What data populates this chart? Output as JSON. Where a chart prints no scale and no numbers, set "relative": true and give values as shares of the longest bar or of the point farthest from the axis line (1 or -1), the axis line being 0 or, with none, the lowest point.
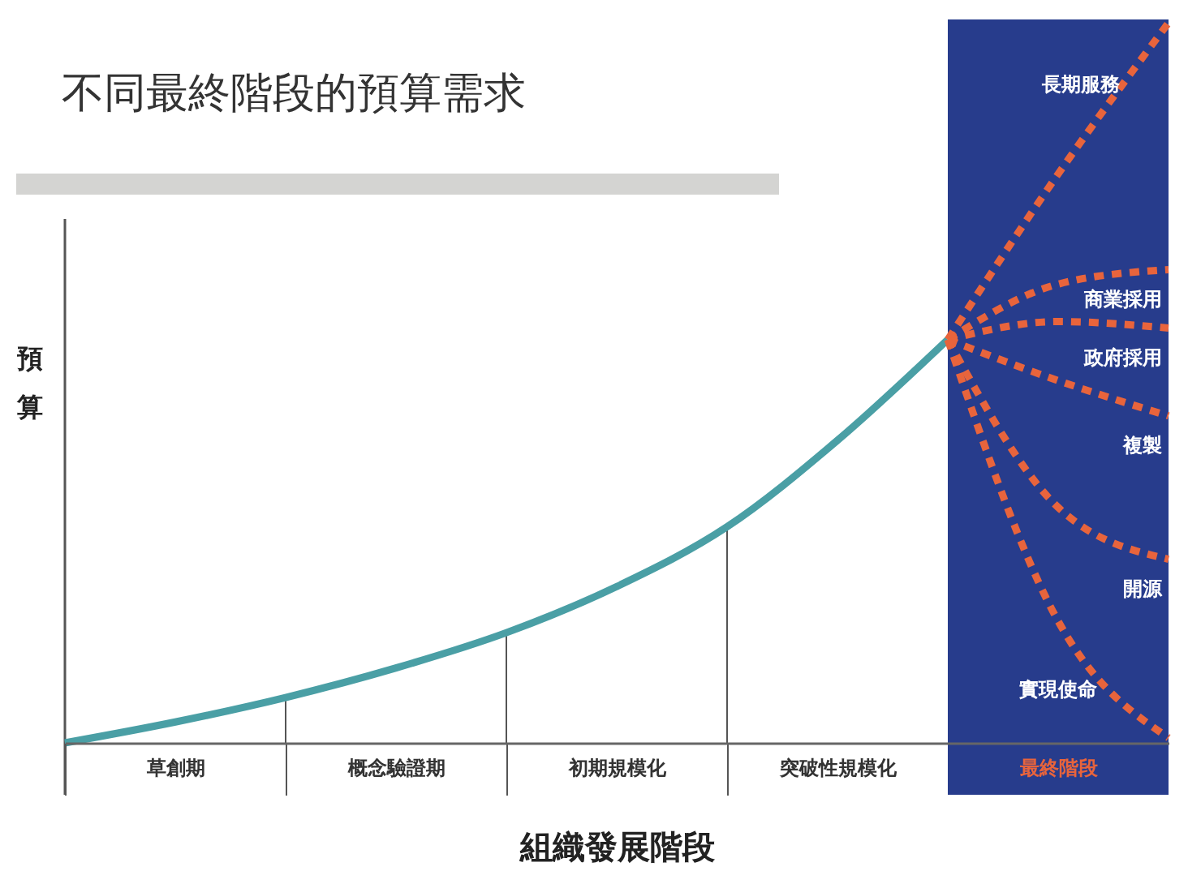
{
  "chart_data": {
    "type": "line",
    "relative": true,
    "title": "不同最終階段的預算需求",
    "xlabel": "組織發展階段",
    "ylabel": "預算",
    "categories": [
      null,
      "草創期",
      null,
      "概念驗證期",
      null,
      "初期規模化",
      null,
      "突破性規模化",
      null,
      "最終階段",
      null
    ],
    "series": [
      {
        "color": "#4a9fa5",
        "line_style": "solid",
        "values": [
          0,
          0.029,
          0.063,
          0.104,
          0.153,
          0.217,
          0.3,
          0.42,
          0.56,
          null,
          null
        ]
      },
      {
        "name": "長期服務",
        "color": "#e8643c",
        "line_style": "dashed",
        "values": [
          null,
          null,
          null,
          null,
          null,
          null,
          null,
          null,
          0.56,
          0.79,
          1.0
        ]
      },
      {
        "name": "商業採用",
        "color": "#e8643c",
        "line_style": "dashed",
        "values": [
          null,
          null,
          null,
          null,
          null,
          null,
          null,
          null,
          0.56,
          0.637,
          0.657
        ]
      },
      {
        "name": "政府採用",
        "color": "#e8643c",
        "line_style": "dashed",
        "values": [
          null,
          null,
          null,
          null,
          null,
          null,
          null,
          null,
          0.56,
          0.585,
          0.576
        ]
      },
      {
        "name": "複製",
        "color": "#e8643c",
        "line_style": "dashed",
        "values": [
          null,
          null,
          null,
          null,
          null,
          null,
          null,
          null,
          0.56,
          0.503,
          0.454
        ]
      },
      {
        "name": "開源",
        "color": "#e8643c",
        "line_style": "dashed",
        "values": [
          null,
          null,
          null,
          null,
          null,
          null,
          null,
          null,
          0.56,
          0.327,
          0.255
        ]
      },
      {
        "name": "實現使命",
        "color": "#e8643c",
        "line_style": "dashed",
        "values": [
          null,
          null,
          null,
          null,
          null,
          null,
          null,
          null,
          0.56,
          0.169,
          0.007
        ]
      }
    ]
  }
}
